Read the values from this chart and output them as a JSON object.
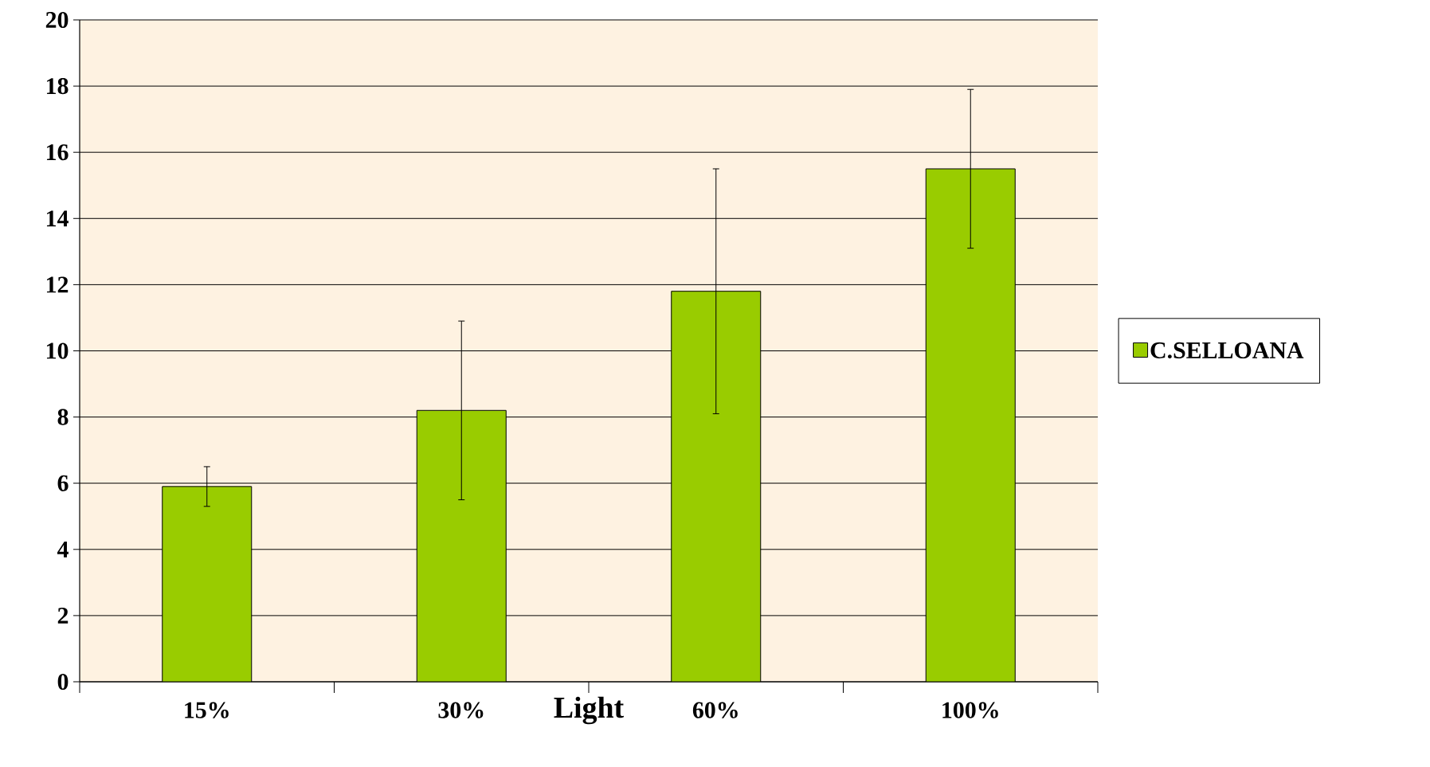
{
  "chart_data": {
    "type": "bar",
    "xlabel": "Light",
    "categories": [
      "15%",
      "30%",
      "60%",
      "100%"
    ],
    "series": [
      {
        "name": "C.SELLOANA",
        "color": "#99cc00",
        "values": [
          5.9,
          8.2,
          11.8,
          15.5
        ],
        "errors": [
          0.6,
          2.7,
          3.7,
          2.4
        ]
      }
    ],
    "ylim": [
      0,
      20
    ],
    "yticks": [
      0,
      2,
      4,
      6,
      8,
      10,
      12,
      14,
      16,
      18,
      20
    ],
    "grid": "y",
    "legend": "right"
  }
}
